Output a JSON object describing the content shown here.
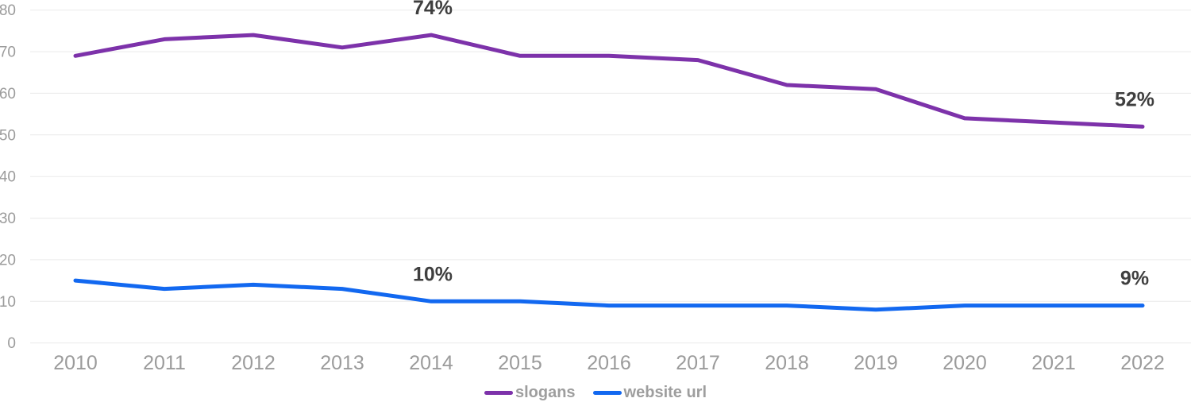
{
  "chart_data": {
    "type": "line",
    "title": "",
    "xlabel": "",
    "ylabel": "",
    "x": [
      2010,
      2011,
      2012,
      2013,
      2014,
      2015,
      2016,
      2017,
      2018,
      2019,
      2020,
      2021,
      2022
    ],
    "series": [
      {
        "name": "slogans",
        "color": "#7d32aa",
        "values": [
          69,
          73,
          74,
          71,
          74,
          69,
          69,
          68,
          62,
          61,
          54,
          53,
          52
        ]
      },
      {
        "name": "website url",
        "color": "#1268f0",
        "values": [
          15,
          13,
          14,
          13,
          10,
          10,
          9,
          9,
          9,
          8,
          9,
          9,
          9
        ]
      }
    ],
    "annotations": [
      {
        "text": "74%",
        "series_index": 0,
        "x": 2014
      },
      {
        "text": "52%",
        "series_index": 0,
        "x": 2022
      },
      {
        "text": "10%",
        "series_index": 1,
        "x": 2014
      },
      {
        "text": "9%",
        "series_index": 1,
        "x": 2022
      }
    ],
    "yticks": [
      0,
      10,
      20,
      30,
      40,
      50,
      60,
      70,
      80
    ],
    "ylim": [
      0,
      80
    ],
    "grid": true,
    "legend_position": "bottom",
    "colors": {
      "background": "#ffffff",
      "grid": "#eaeaea",
      "axis_label": "#9b9b9b",
      "annotation": "#3f3f3f",
      "legend_text": "#9e9e9e"
    }
  },
  "legend": {
    "items": [
      {
        "label": "slogans"
      },
      {
        "label": "website url"
      }
    ]
  }
}
